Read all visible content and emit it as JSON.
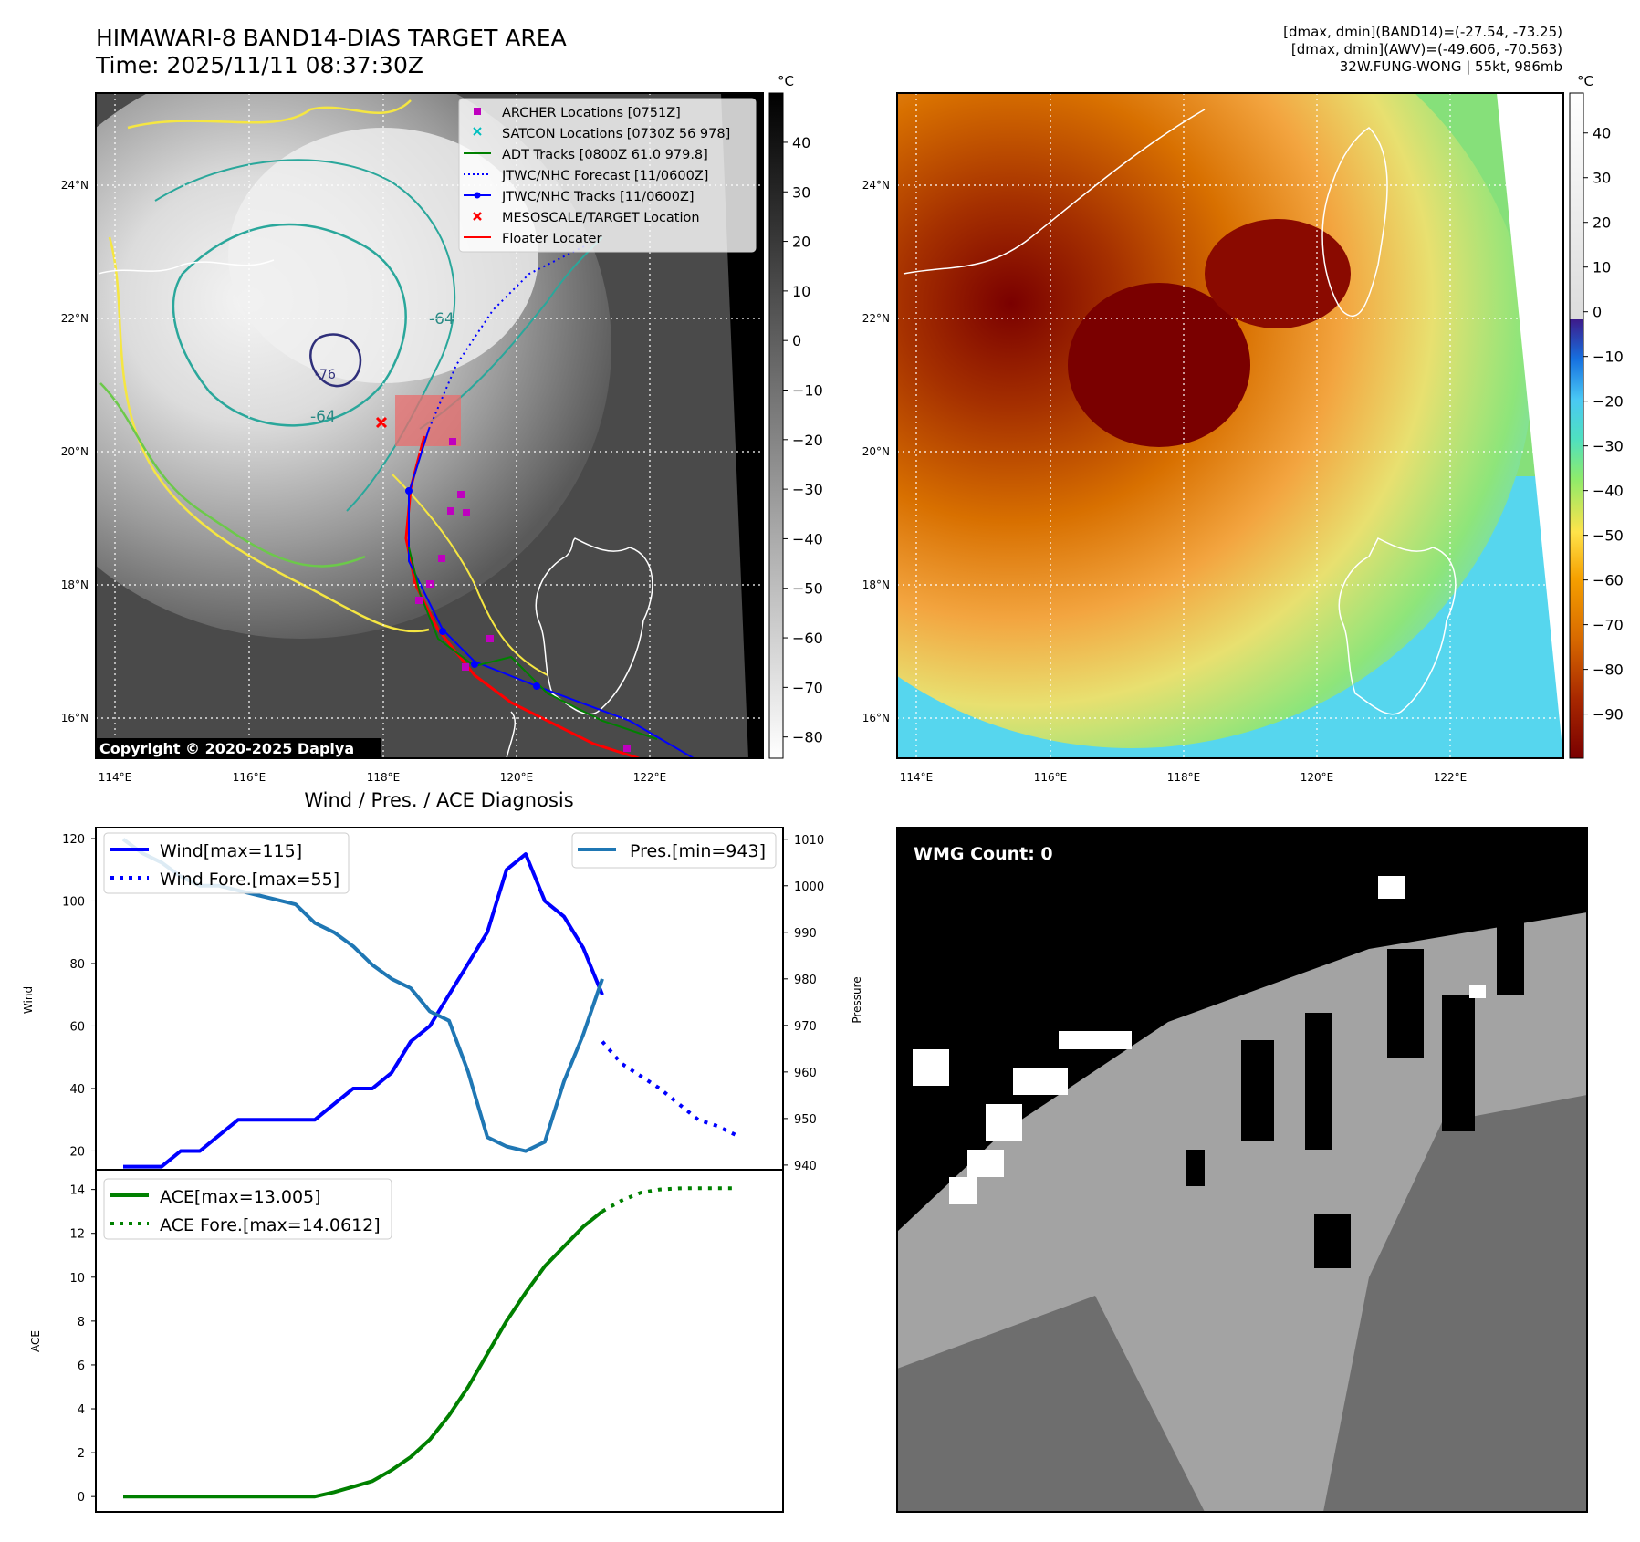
{
  "header": {
    "title_line1": "HIMAWARI-8 BAND14-DIAS TARGET AREA",
    "title_line2": "Time: 2025/11/11 08:37:30Z",
    "info_line1": "[dmax, dmin](BAND14)=(-27.54, -73.25)",
    "info_line2": "[dmax, dmin](AWV)=(-49.606, -70.563)",
    "info_line3": "32W.FUNG-WONG | 55kt, 986mb"
  },
  "map": {
    "lat_labels": [
      "24°N",
      "22°N",
      "20°N",
      "18°N",
      "16°N"
    ],
    "lon_labels": [
      "114°E",
      "116°E",
      "118°E",
      "120°E",
      "122°E"
    ],
    "copyright": "Copyright © 2020-2025 Dapiya",
    "legend": [
      {
        "label": "ARCHER Locations [0751Z]",
        "color": "#bf00bf",
        "kind": "square"
      },
      {
        "label": "SATCON Locations [0730Z 56 978]",
        "color": "#00bfbf",
        "kind": "x"
      },
      {
        "label": "ADT Tracks [0800Z 61.0 979.8]",
        "color": "#008000",
        "kind": "line"
      },
      {
        "label": "JTWC/NHC Forecast [11/0600Z]",
        "color": "#0000ff",
        "kind": "dotted"
      },
      {
        "label": "JTWC/NHC Tracks [11/0600Z]",
        "color": "#0000ff",
        "kind": "marker-line"
      },
      {
        "label": "MESOSCALE/TARGET Location",
        "color": "#ff0000",
        "kind": "x"
      },
      {
        "label": "Floater Locater",
        "color": "#ff0000",
        "kind": "line"
      }
    ],
    "contour_labels": [
      "-64",
      "-64",
      "-76"
    ]
  },
  "cbar_left": {
    "unit": "°C",
    "ticks": [
      "40",
      "30",
      "20",
      "10",
      "0",
      "−10",
      "−20",
      "−30",
      "−40",
      "−50",
      "−60",
      "−70",
      "−80"
    ]
  },
  "cbar_right": {
    "unit": "°C",
    "ticks": [
      "40",
      "30",
      "20",
      "10",
      "0",
      "−10",
      "−20",
      "−30",
      "−40",
      "−50",
      "−60",
      "−70",
      "−80",
      "−90"
    ]
  },
  "wmg": {
    "label": "WMG Count: 0"
  },
  "chart_data": [
    {
      "type": "line",
      "title": "Wind / Pres. / ACE Diagnosis",
      "ylabel": "Wind",
      "ylabel_right": "Pressure",
      "ylim": [
        15,
        120
      ],
      "ylim_right": [
        940,
        1012
      ],
      "xlim": [
        0,
        33
      ],
      "yticks": [
        "20",
        "40",
        "60",
        "80",
        "100",
        "120"
      ],
      "yticks_right": [
        "940",
        "950",
        "960",
        "970",
        "980",
        "990",
        "1000",
        "1010"
      ],
      "legend_left": [
        "Wind[max=115]",
        "Wind Fore.[max=55]"
      ],
      "legend_right": [
        "Pres.[min=943]"
      ],
      "series": [
        {
          "name": "Wind[max=115]",
          "color": "#0000ff",
          "style": "solid",
          "x": [
            0,
            1,
            2,
            3,
            4,
            5,
            6,
            7,
            8,
            9,
            10,
            11,
            12,
            13,
            14,
            15,
            16,
            17,
            18,
            19,
            20,
            21,
            22,
            23,
            24,
            25
          ],
          "values": [
            15,
            15,
            15,
            20,
            20,
            25,
            30,
            30,
            30,
            30,
            30,
            35,
            40,
            40,
            45,
            55,
            60,
            70,
            80,
            90,
            110,
            115,
            100,
            95,
            85,
            70
          ]
        },
        {
          "name": "Wind Fore.[max=55]",
          "color": "#0000ff",
          "style": "dotted",
          "x": [
            25,
            26,
            27,
            28,
            29,
            30,
            31,
            32
          ],
          "values": [
            55,
            48,
            44,
            40,
            35,
            30,
            28,
            25
          ]
        },
        {
          "name": "Pres.[min=943]",
          "color": "#1f77b4",
          "style": "solid",
          "axis": "right",
          "x": [
            0,
            1,
            2,
            3,
            4,
            5,
            6,
            7,
            8,
            9,
            10,
            11,
            12,
            13,
            14,
            15,
            16,
            17,
            18,
            19,
            20,
            21,
            22,
            23,
            24,
            25
          ],
          "values": [
            1010,
            1007,
            1005,
            1002,
            1000,
            1000,
            999,
            998,
            997,
            996,
            992,
            990,
            987,
            983,
            980,
            978,
            973,
            971,
            960,
            946,
            944,
            943,
            945,
            958,
            968,
            980
          ]
        }
      ]
    },
    {
      "type": "line",
      "title": "",
      "ylabel": "ACE",
      "ylim": [
        -0.5,
        14.5
      ],
      "xlim": [
        0,
        33
      ],
      "yticks": [
        "0",
        "2",
        "4",
        "6",
        "8",
        "10",
        "12",
        "14"
      ],
      "legend": [
        "ACE[max=13.005]",
        "ACE Fore.[max=14.0612]"
      ],
      "series": [
        {
          "name": "ACE[max=13.005]",
          "color": "#008000",
          "style": "solid",
          "x": [
            0,
            2,
            4,
            6,
            8,
            10,
            11,
            12,
            13,
            14,
            15,
            16,
            17,
            18,
            19,
            20,
            21,
            22,
            23,
            24,
            25
          ],
          "values": [
            0,
            0,
            0,
            0,
            0,
            0,
            0.2,
            0.45,
            0.7,
            1.2,
            1.8,
            2.6,
            3.7,
            5.0,
            6.5,
            8.0,
            9.3,
            10.5,
            11.4,
            12.3,
            13.005
          ]
        },
        {
          "name": "ACE Fore.[max=14.0612]",
          "color": "#008000",
          "style": "dotted",
          "x": [
            25,
            26,
            27,
            28,
            29,
            30,
            31,
            32
          ],
          "values": [
            13.005,
            13.5,
            13.85,
            14.0,
            14.05,
            14.06,
            14.0612,
            14.0612
          ]
        }
      ]
    }
  ]
}
